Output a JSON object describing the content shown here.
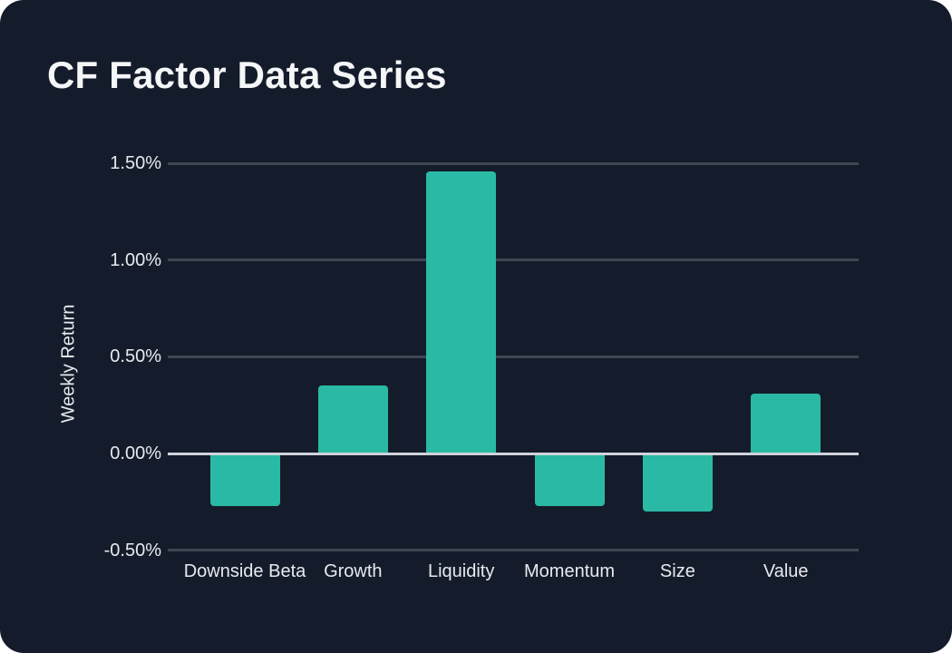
{
  "card": {
    "title": "CF Factor Data Series"
  },
  "colors": {
    "page_background": "#ffffff",
    "card_background": "#141c2b",
    "bar": "#2ab9a4",
    "gridline": "#3e4553",
    "zero_line": "#d0d3da",
    "title_text": "#f5f6f8",
    "axis_text": "#e8eaee"
  },
  "chart_data": {
    "type": "bar",
    "title": "CF Factor Data Series",
    "ylabel": "Weekly Return",
    "xlabel": "",
    "categories": [
      "Downside Beta",
      "Growth",
      "Liquidity",
      "Momentum",
      "Size",
      "Value"
    ],
    "values": [
      -0.27,
      0.35,
      1.46,
      -0.27,
      -0.3,
      0.31
    ],
    "unit": "%",
    "ylim": [
      -0.5,
      1.5
    ],
    "yticks": [
      1.5,
      1.0,
      0.5,
      0.0,
      -0.5
    ],
    "ytick_labels": [
      "1.50%",
      "1.00%",
      "0.50%",
      "0.00%",
      "-0.50%"
    ],
    "grid": true,
    "legend": false,
    "bar_color": "#2ab9a4"
  }
}
